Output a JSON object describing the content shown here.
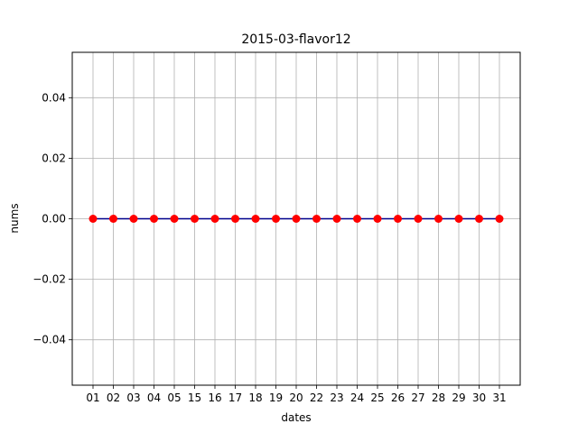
{
  "chart_data": {
    "type": "line",
    "title": "2015-03-flavor12",
    "xlabel": "dates",
    "ylabel": "nums",
    "categories": [
      "01",
      "02",
      "03",
      "04",
      "05",
      "15",
      "16",
      "17",
      "18",
      "19",
      "20",
      "22",
      "23",
      "24",
      "25",
      "26",
      "27",
      "28",
      "29",
      "30",
      "31"
    ],
    "series": [
      {
        "values": [
          0,
          0,
          0,
          0,
          0,
          0,
          0,
          0,
          0,
          0,
          0,
          0,
          0,
          0,
          0,
          0,
          0,
          0,
          0,
          0,
          0
        ]
      }
    ],
    "ylim": [
      -0.055,
      0.055
    ],
    "yticks": [
      -0.04,
      -0.02,
      0.0,
      0.02,
      0.04
    ],
    "ytick_labels": [
      "−0.04",
      "−0.02",
      "0.00",
      "0.02",
      "0.04"
    ],
    "grid": true,
    "line_color": "#00008b",
    "marker_color": "#ff0000"
  }
}
